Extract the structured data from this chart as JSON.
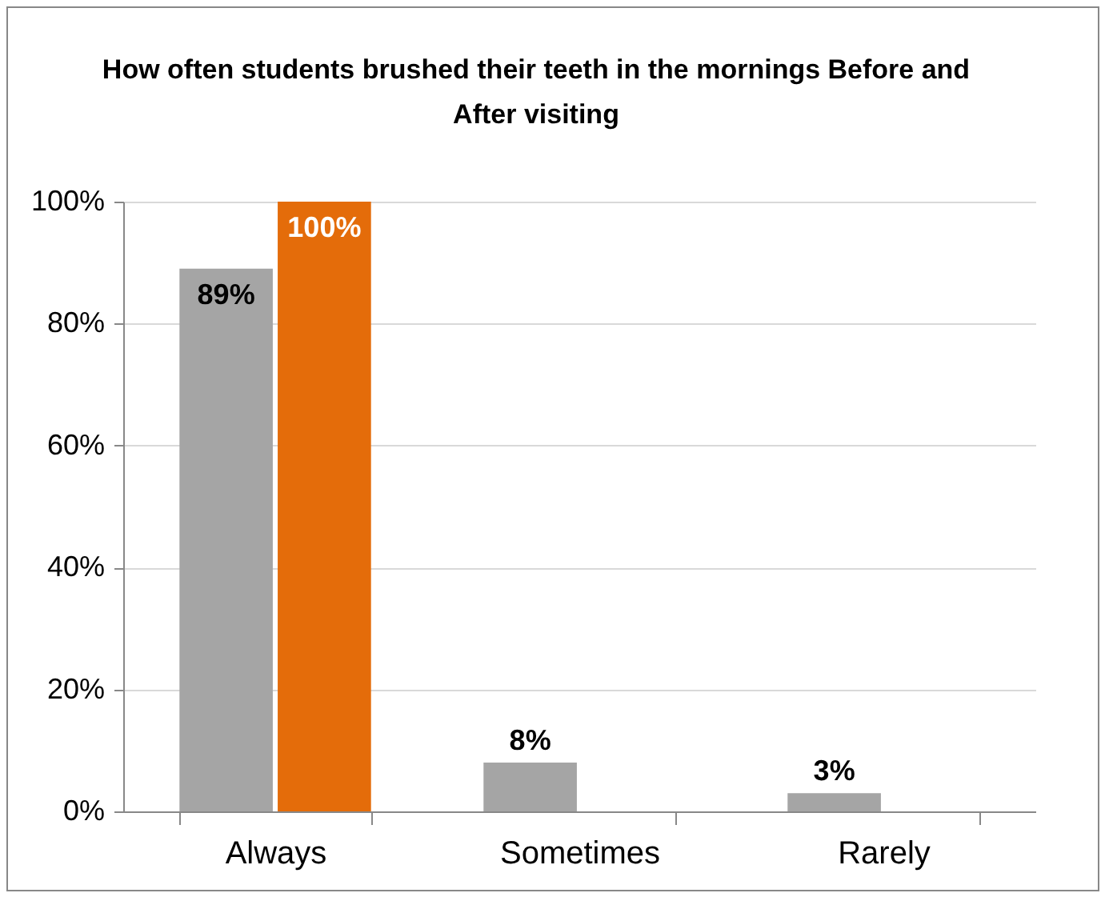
{
  "chart_data": {
    "type": "bar",
    "title": "How often students brushed their teeth in the mornings Before and After visiting",
    "categories": [
      "Always",
      "Sometimes",
      "Rarely"
    ],
    "series": [
      {
        "color": "#a5a5a5",
        "values": [
          89,
          8,
          3
        ],
        "value_labels": [
          "89%",
          "8%",
          "3%"
        ]
      },
      {
        "color": "#e46c0a",
        "values": [
          100,
          null,
          null
        ],
        "value_labels": [
          "100%",
          null,
          null
        ]
      }
    ],
    "ylim": [
      0,
      100
    ],
    "yticks": [
      {
        "value": 0,
        "label": "0%"
      },
      {
        "value": 20,
        "label": "20%"
      },
      {
        "value": 40,
        "label": "40%"
      },
      {
        "value": 60,
        "label": "60%"
      },
      {
        "value": 80,
        "label": "80%"
      },
      {
        "value": 100,
        "label": "100%"
      }
    ],
    "grid": "y",
    "legend": false
  }
}
